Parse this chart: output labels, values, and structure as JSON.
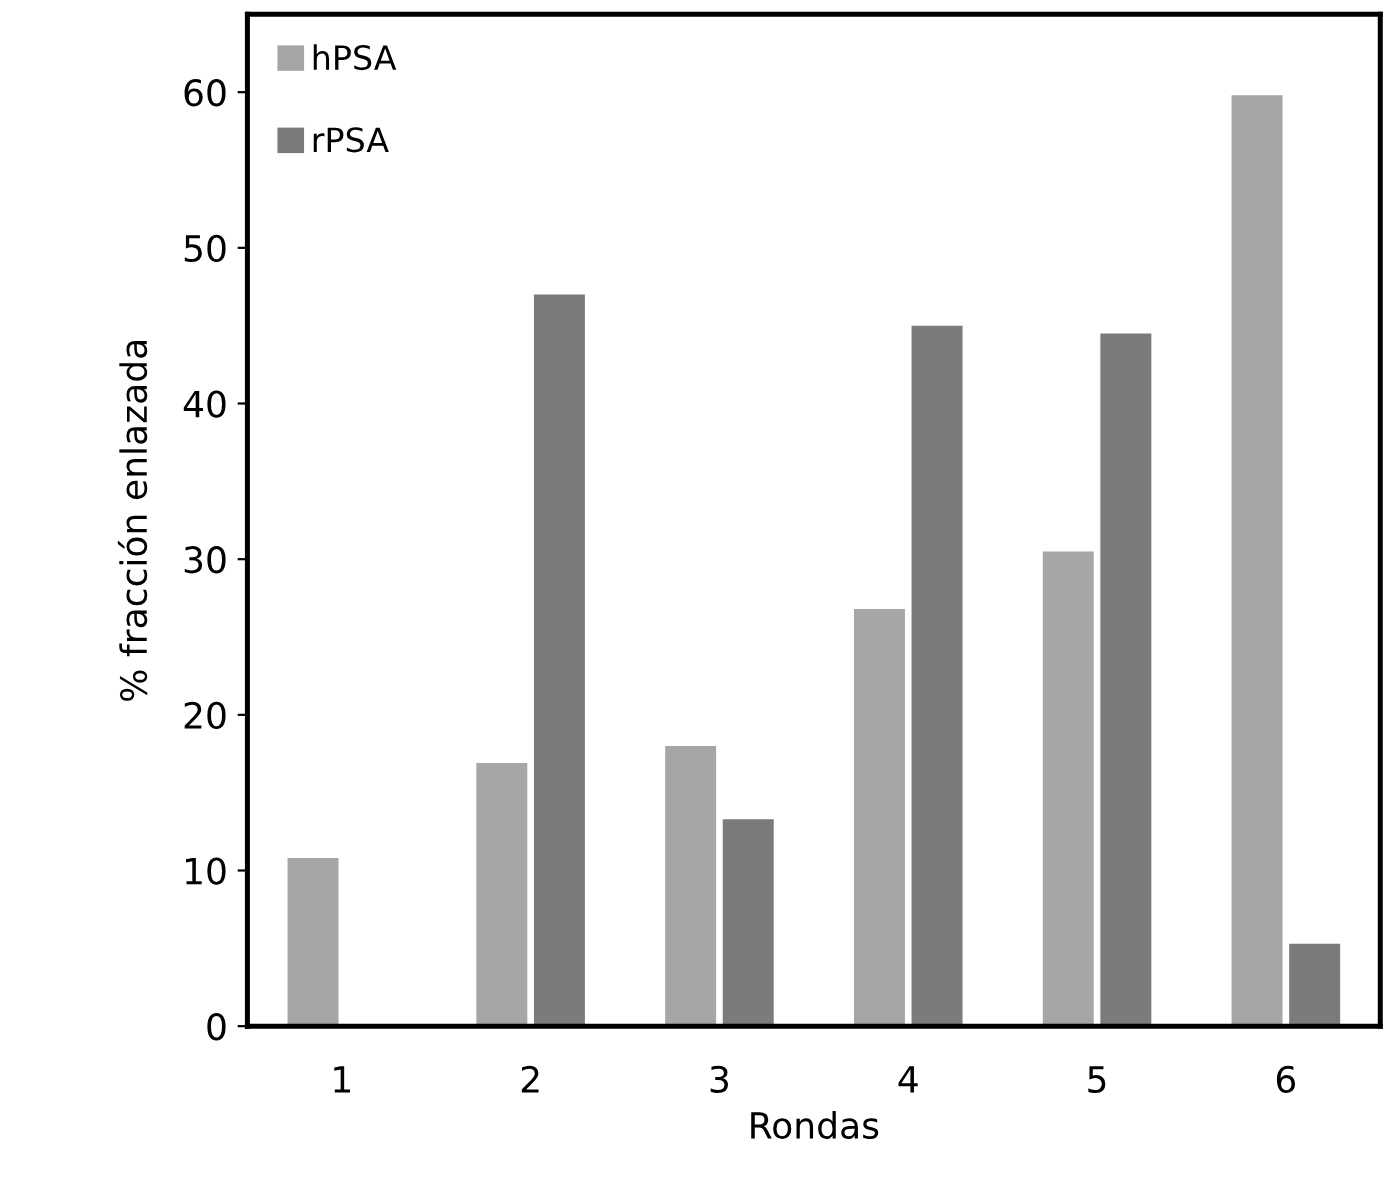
{
  "chart_data": {
    "type": "bar",
    "xlabel": "Rondas",
    "ylabel": "% fracción enlazada",
    "categories": [
      "1",
      "2",
      "3",
      "4",
      "5",
      "6"
    ],
    "series": [
      {
        "name": "hPSA",
        "color": "#a6a6a6",
        "values": [
          10.8,
          16.9,
          18,
          26.8,
          30.5,
          59.8
        ]
      },
      {
        "name": "rPSA",
        "color": "#7b7b7b",
        "values": [
          0,
          47,
          13.3,
          45,
          44.5,
          5.3
        ]
      }
    ],
    "ylim": [
      0,
      65
    ],
    "yticks": [
      0,
      10,
      20,
      30,
      40,
      50,
      60
    ],
    "grid": false,
    "legend": "top left"
  }
}
